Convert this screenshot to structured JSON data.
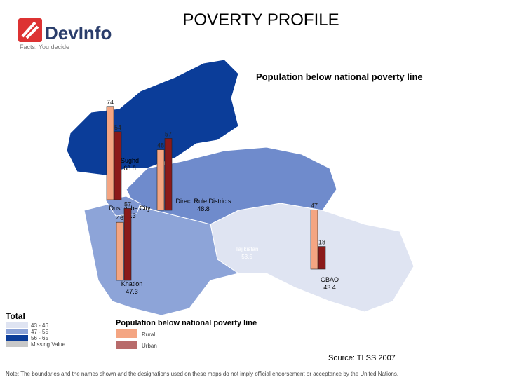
{
  "header": {
    "title": "POVERTY PROFILE",
    "logo": "DevInfo",
    "tagline": "Facts. You decide"
  },
  "map": {
    "title": "Population below national poverty line",
    "country": {
      "name": "Tajikistan",
      "value": 53.5
    },
    "regions": [
      {
        "name": "Sughd",
        "value": 68.8,
        "rural": 74,
        "urban": 54
      },
      {
        "name": "Direct Rule Districts",
        "value": 48.8,
        "rural": 48,
        "urban": 57
      },
      {
        "name": "Dushanbe City",
        "value": 43.3
      },
      {
        "name": "Khatlon",
        "value": 47.3,
        "rural": 46,
        "urban": 57
      },
      {
        "name": "GBAO",
        "value": 43.4,
        "rural": 47,
        "urban": 18
      }
    ]
  },
  "legend_total": {
    "title": "Total",
    "items": [
      "43 - 46",
      "47 - 55",
      "56 - 65",
      "Missing Value"
    ]
  },
  "legend_bars": {
    "title": "Population below national poverty line",
    "items": [
      "Rural",
      "Urban"
    ]
  },
  "source": "Source: TLSS 2007",
  "note": "Note: The boundaries and the names shown and the designations used on these maps do not imply official endorsement or acceptance by the United Nations."
}
